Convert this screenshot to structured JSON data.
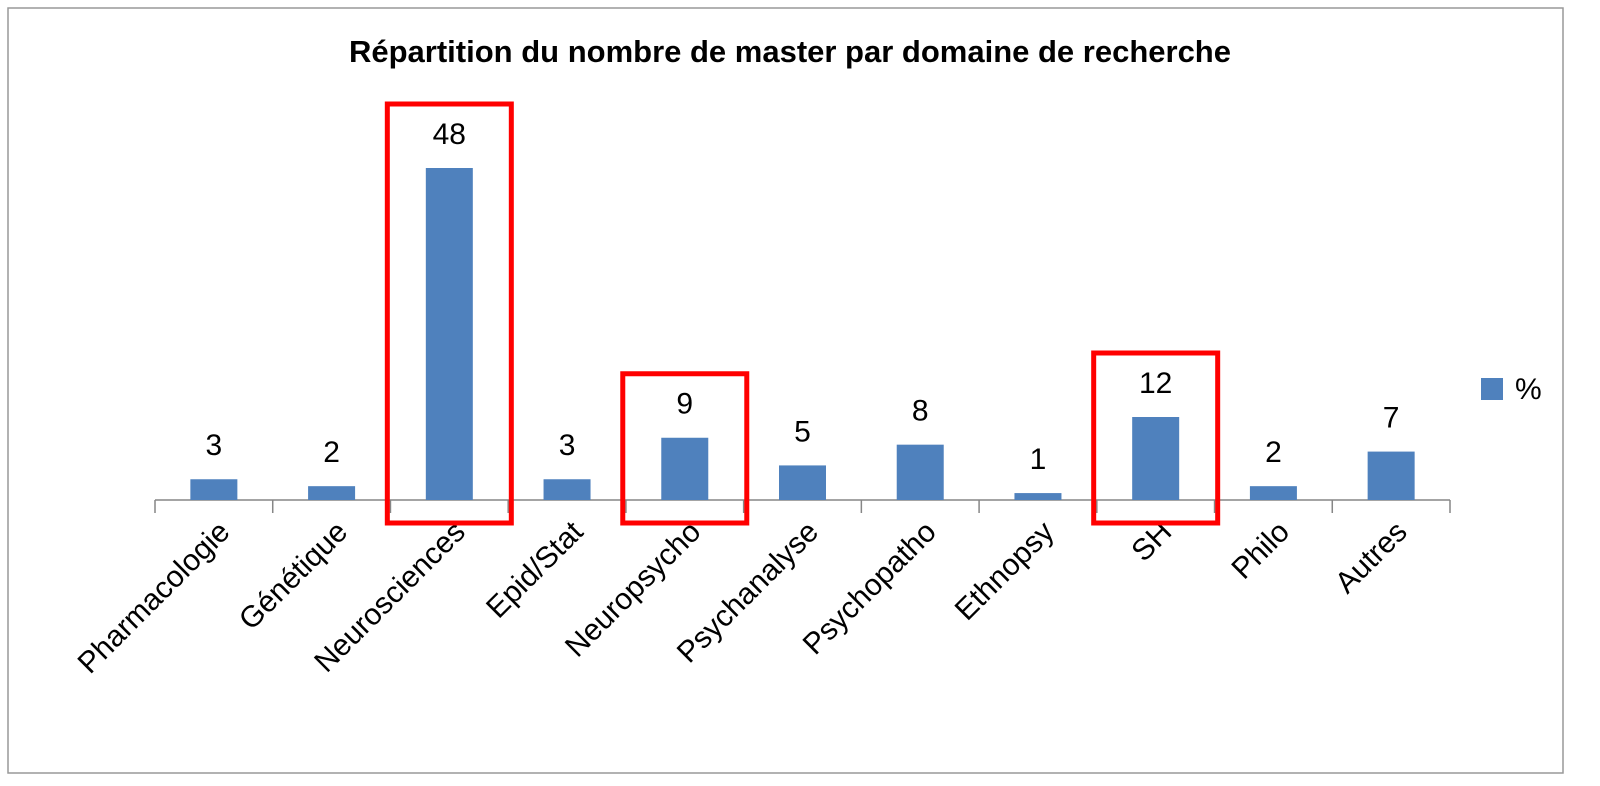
{
  "chart_data": {
    "type": "bar",
    "title": "Répartition du nombre de master par domaine de recherche",
    "categories": [
      "Pharmacologie",
      "Génétique",
      "Neurosciences",
      "Epid/Stat",
      "Neuropsycho",
      "Psychanalyse",
      "Psychopatho",
      "Ethnopsy",
      "SH",
      "Philo",
      "Autres"
    ],
    "series": [
      {
        "name": "%",
        "color": "#4f81bd",
        "values": [
          3,
          2,
          48,
          3,
          9,
          5,
          8,
          1,
          12,
          2,
          7
        ]
      }
    ],
    "legend": "right",
    "highlight": [
      "Neurosciences",
      "Neuropsycho",
      "SH"
    ],
    "highlight_color": "#ff0000"
  }
}
